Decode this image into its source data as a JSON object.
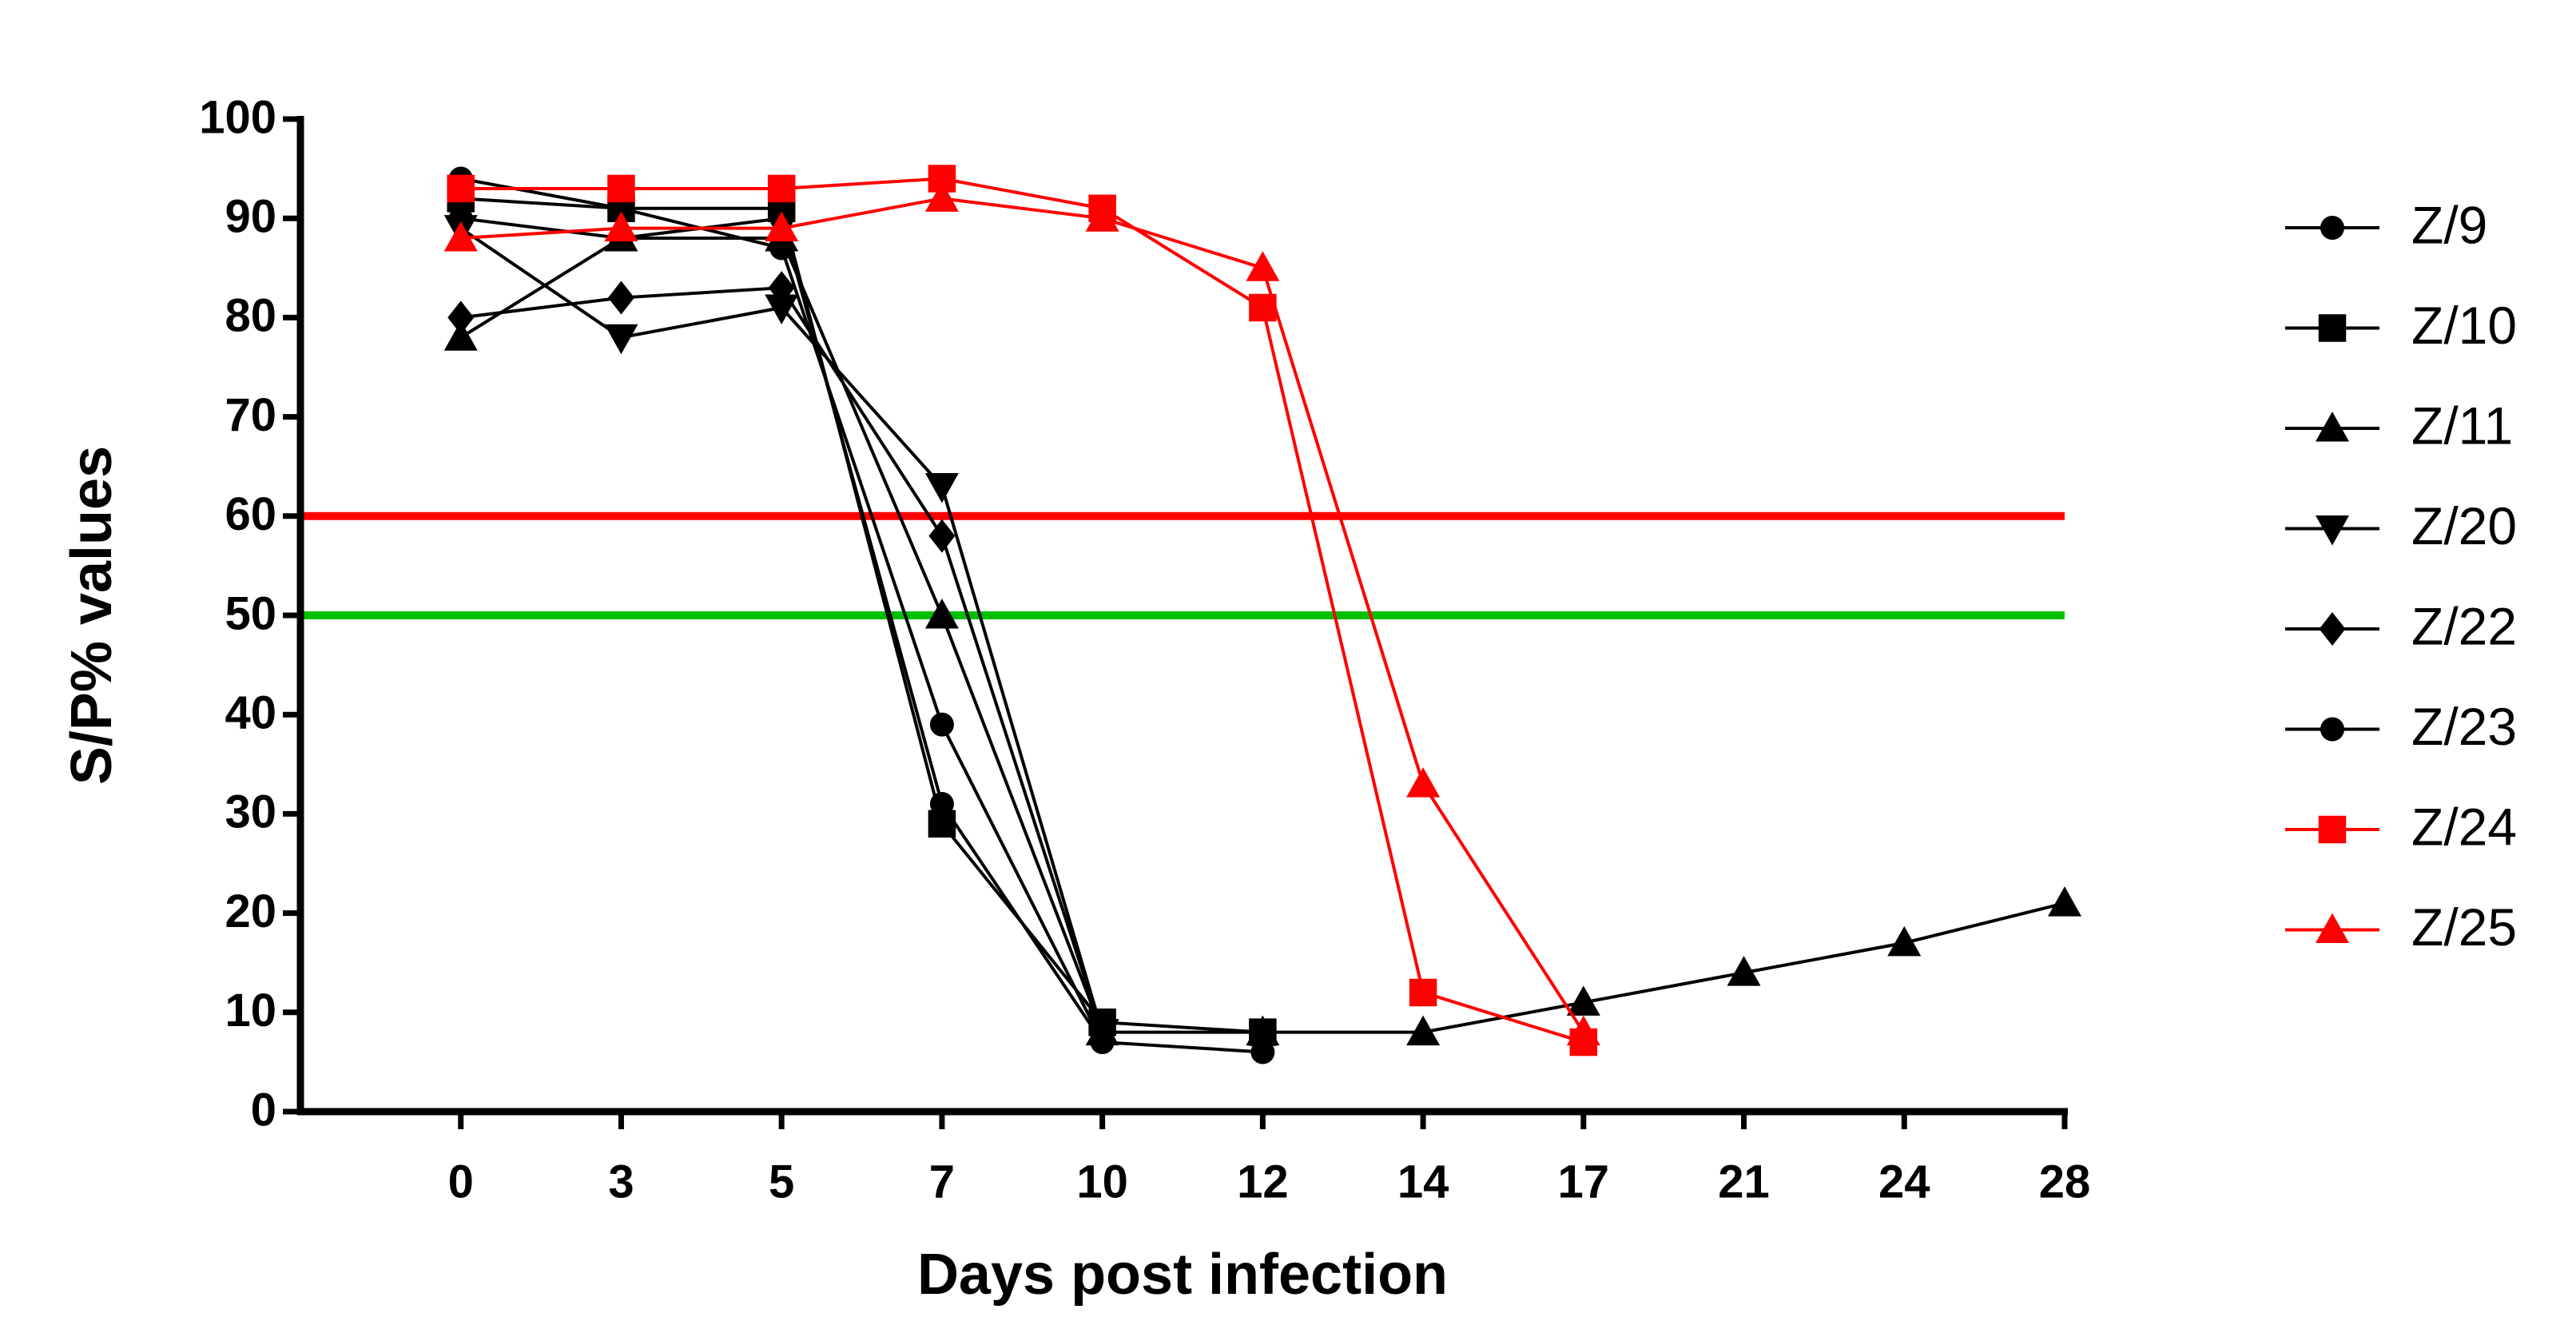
{
  "chart_data": {
    "type": "line",
    "xlabel": "Days post infection",
    "ylabel": "S/P% values",
    "categories": [
      "0",
      "3",
      "5",
      "7",
      "10",
      "12",
      "14",
      "17",
      "21",
      "24",
      "28"
    ],
    "ylim": [
      0,
      100
    ],
    "yticks": [
      0,
      10,
      20,
      30,
      40,
      50,
      60,
      70,
      80,
      90,
      100
    ],
    "legend": "right",
    "reference_lines": [
      {
        "value": 60,
        "color": "#ff0000"
      },
      {
        "value": 50,
        "color": "#00c000"
      }
    ],
    "series": [
      {
        "name": "Z/9",
        "color": "#000000",
        "marker": "circle",
        "values": [
          90,
          88,
          90,
          31,
          7,
          null,
          null,
          null,
          null,
          null,
          null
        ]
      },
      {
        "name": "Z/10",
        "color": "#000000",
        "marker": "square",
        "values": [
          92,
          91,
          91,
          29,
          9,
          8,
          null,
          null,
          null,
          null,
          null
        ]
      },
      {
        "name": "Z/11",
        "color": "#000000",
        "marker": "triangle-up",
        "values": [
          78,
          88,
          88,
          50,
          8,
          8,
          8,
          11,
          14,
          17,
          21
        ]
      },
      {
        "name": "Z/20",
        "color": "#000000",
        "marker": "triangle-down",
        "values": [
          89,
          78,
          81,
          63,
          8,
          null,
          null,
          null,
          null,
          null,
          null
        ]
      },
      {
        "name": "Z/22",
        "color": "#000000",
        "marker": "diamond",
        "values": [
          80,
          82,
          83,
          58,
          8,
          null,
          null,
          null,
          null,
          null,
          null
        ]
      },
      {
        "name": "Z/23",
        "color": "#000000",
        "marker": "circle",
        "values": [
          94,
          91,
          87,
          39,
          7,
          6,
          null,
          null,
          null,
          null,
          null
        ]
      },
      {
        "name": "Z/24",
        "color": "#ff0000",
        "marker": "square",
        "values": [
          93,
          93,
          93,
          94,
          91,
          81,
          12,
          7,
          null,
          null,
          null
        ]
      },
      {
        "name": "Z/25",
        "color": "#ff0000",
        "marker": "triangle-up",
        "values": [
          88,
          89,
          89,
          92,
          90,
          85,
          33,
          8,
          null,
          null,
          null
        ]
      }
    ]
  }
}
